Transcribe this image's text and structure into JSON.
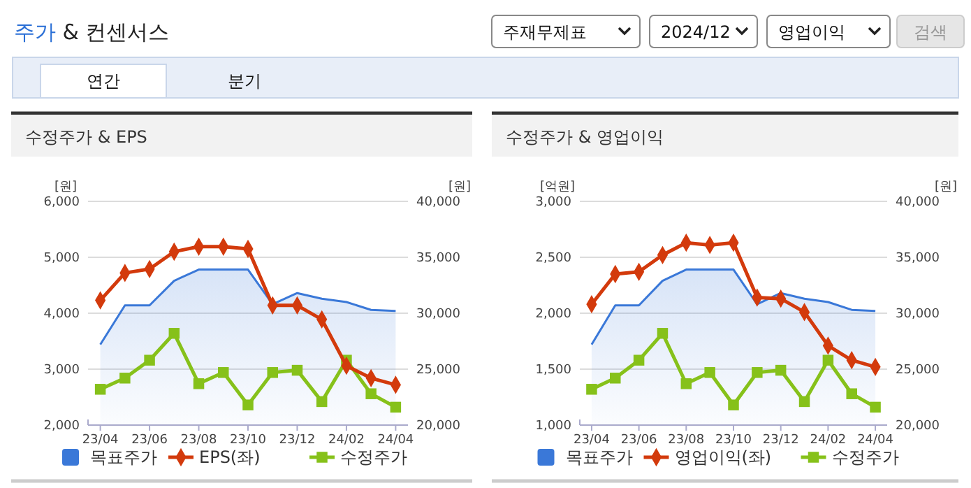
{
  "chart_data": [
    {
      "type": "other",
      "title": "주가 & 컨센서스",
      "annotations": [
        "주재무제표",
        "2024/12",
        "영업이익",
        "검색",
        "연간",
        "분기"
      ]
    },
    {
      "type": "line",
      "title": "수정주가 & EPS",
      "ylabel": "[원]",
      "y2label": "[원]",
      "categories": [
        "23/04",
        null,
        "23/06",
        null,
        "23/08",
        null,
        "23/10",
        null,
        "23/12",
        null,
        "24/02",
        null,
        "24/04"
      ],
      "series": [
        {
          "name": "목표주가",
          "type": "area",
          "axis": "y2",
          "color": "#3a78d8",
          "marker": "none",
          "values": [
            27200,
            30700,
            30700,
            32900,
            33900,
            33900,
            33900,
            30800,
            31800,
            31300,
            31000,
            30300,
            30200
          ]
        },
        {
          "name": "EPS(좌)",
          "type": "line",
          "color": "#d33a0c",
          "marker": "diamond",
          "values": [
            4230,
            4720,
            4790,
            5100,
            5190,
            5190,
            5150,
            4140,
            4140,
            3890,
            3060,
            2840,
            2720
          ]
        },
        {
          "name": "수정주가",
          "type": "line",
          "axis": "y2",
          "color": "#86c11a",
          "marker": "square",
          "values": [
            23200,
            24200,
            25800,
            28200,
            23700,
            24700,
            21800,
            24700,
            24900,
            22100,
            25800,
            22800,
            21600
          ]
        }
      ],
      "ylim": [
        2000,
        6000
      ],
      "yticks": [
        {
          "value": 2000,
          "label": "2,000"
        },
        {
          "value": 3000,
          "label": "3,000"
        },
        {
          "value": 4000,
          "label": "4,000"
        },
        {
          "value": 5000,
          "label": "5,000"
        },
        {
          "value": 6000,
          "label": "6,000"
        }
      ],
      "y2lim": [
        20000,
        40000
      ],
      "y2ticks": [
        {
          "value": 20000,
          "label": "20,000"
        },
        {
          "value": 25000,
          "label": "25,000"
        },
        {
          "value": 30000,
          "label": "30,000"
        },
        {
          "value": 35000,
          "label": "35,000"
        },
        {
          "value": 40000,
          "label": "40,000"
        }
      ],
      "grid": "y",
      "legend": "bottom"
    },
    {
      "type": "line",
      "title": "수정주가 & 영업이익",
      "ylabel": "[억원]",
      "y2label": "[원]",
      "categories": [
        "23/04",
        null,
        "23/06",
        null,
        "23/08",
        null,
        "23/10",
        null,
        "23/12",
        null,
        "24/02",
        null,
        "24/04"
      ],
      "series": [
        {
          "name": "목표주가",
          "type": "area",
          "axis": "y2",
          "color": "#3a78d8",
          "marker": "none",
          "values": [
            27200,
            30700,
            30700,
            32900,
            33900,
            33900,
            33900,
            30800,
            31800,
            31300,
            31000,
            30300,
            30200
          ]
        },
        {
          "name": "영업이익(좌)",
          "type": "line",
          "color": "#d33a0c",
          "marker": "diamond",
          "values": [
            2080,
            2350,
            2370,
            2520,
            2630,
            2610,
            2630,
            2140,
            2130,
            2010,
            1710,
            1580,
            1520
          ]
        },
        {
          "name": "수정주가",
          "type": "line",
          "axis": "y2",
          "color": "#86c11a",
          "marker": "square",
          "values": [
            23200,
            24200,
            25800,
            28200,
            23700,
            24700,
            21800,
            24700,
            24900,
            22100,
            25800,
            22800,
            21600
          ]
        }
      ],
      "ylim": [
        1000,
        3000
      ],
      "yticks": [
        {
          "value": 1000,
          "label": "1,000"
        },
        {
          "value": 1500,
          "label": "1,500"
        },
        {
          "value": 2000,
          "label": "2,000"
        },
        {
          "value": 2500,
          "label": "2,500"
        },
        {
          "value": 3000,
          "label": "3,000"
        }
      ],
      "y2lim": [
        20000,
        40000
      ],
      "y2ticks": [
        {
          "value": 20000,
          "label": "20,000"
        },
        {
          "value": 25000,
          "label": "25,000"
        },
        {
          "value": 30000,
          "label": "30,000"
        },
        {
          "value": 35000,
          "label": "35,000"
        },
        {
          "value": 40000,
          "label": "40,000"
        }
      ],
      "grid": "y",
      "legend": "bottom"
    }
  ]
}
